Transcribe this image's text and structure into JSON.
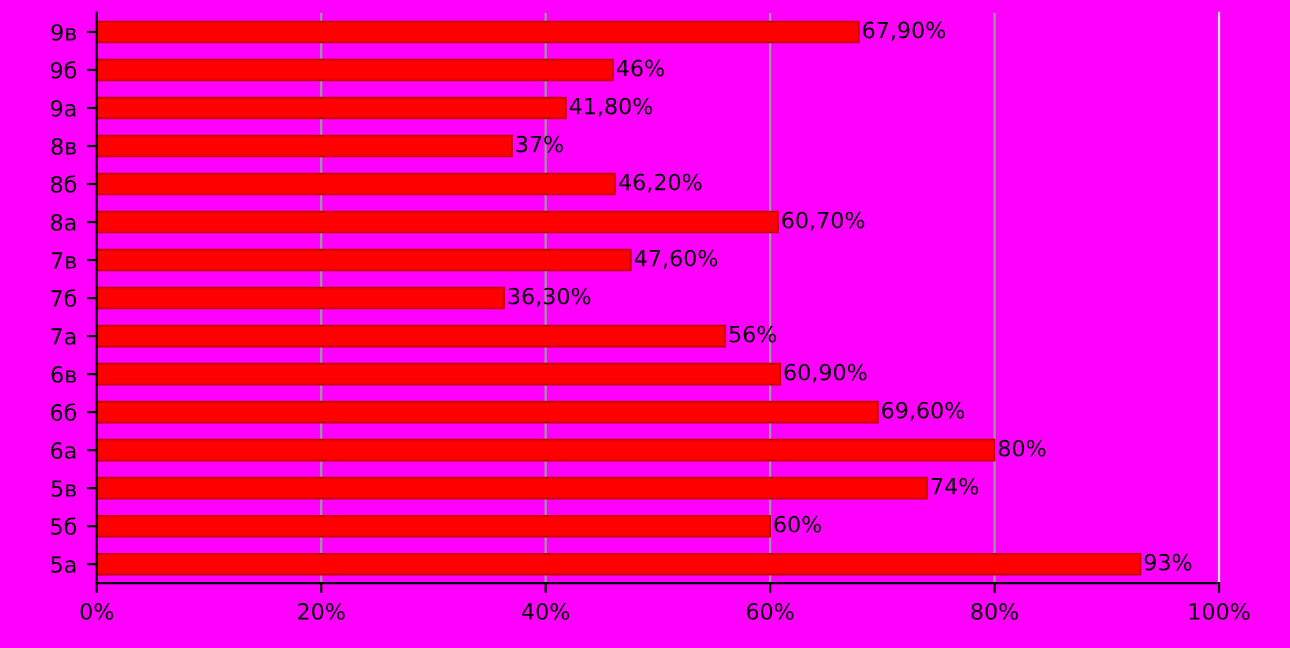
{
  "chart_data": {
    "type": "bar",
    "orientation": "horizontal",
    "categories": [
      "9в",
      "9б",
      "9а",
      "8в",
      "8б",
      "8а",
      "7в",
      "7б",
      "7а",
      "6в",
      "6б",
      "6а",
      "5в",
      "5б",
      "5а"
    ],
    "values": [
      67.9,
      46,
      41.8,
      37,
      46.2,
      60.7,
      47.6,
      36.3,
      56,
      60.9,
      69.6,
      80,
      74,
      60,
      93
    ],
    "value_labels": [
      "67,90%",
      "46%",
      "41,80%",
      "37%",
      "46,20%",
      "60,70%",
      "47,60%",
      "36,30%",
      "56%",
      "60,90%",
      "69,60%",
      "80%",
      "74%",
      "60%",
      "93%"
    ],
    "color": "#ff0000",
    "xlim": [
      0,
      100
    ],
    "xticks": [
      {
        "value": 0,
        "label": "0%"
      },
      {
        "value": 20,
        "label": "20%"
      },
      {
        "value": 40,
        "label": "40%"
      },
      {
        "value": 60,
        "label": "60%"
      },
      {
        "value": 80,
        "label": "80%"
      },
      {
        "value": 100,
        "label": "100%"
      }
    ],
    "grid": "x",
    "legend": false
  }
}
